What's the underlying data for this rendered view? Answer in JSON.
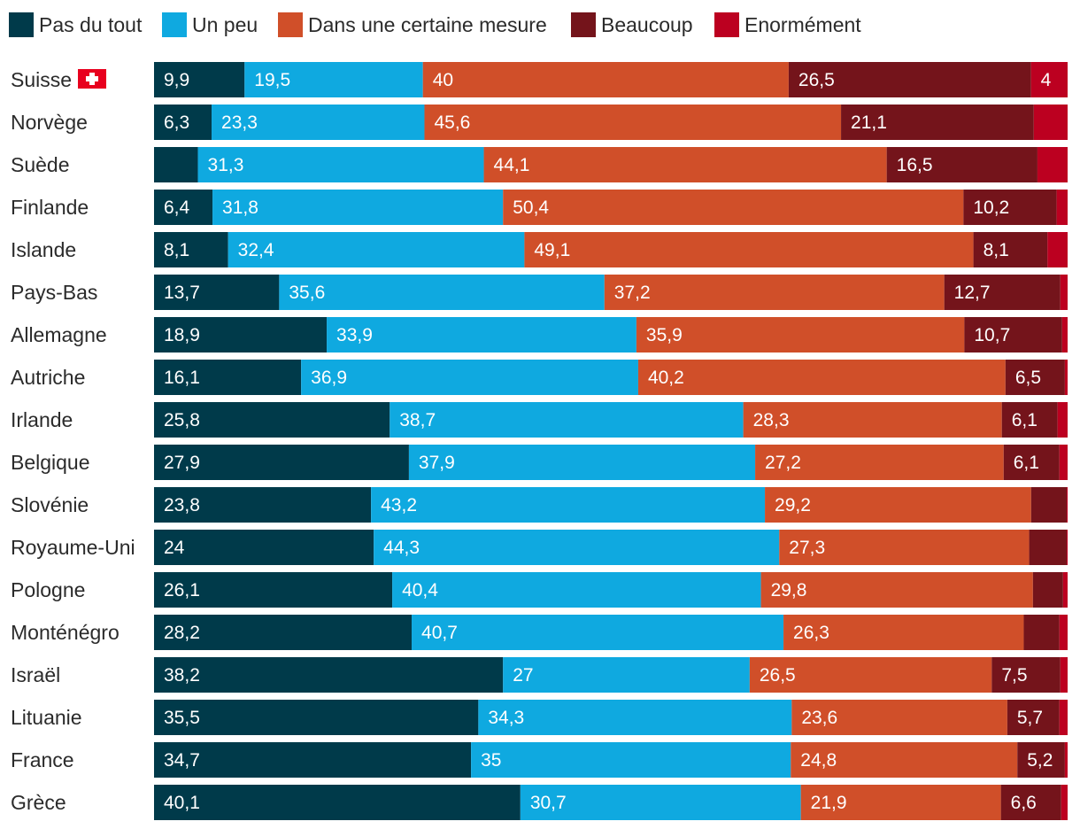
{
  "chart_data": {
    "type": "bar",
    "orientation": "horizontal",
    "stacked": true,
    "title": "",
    "xlabel": "",
    "ylabel": "",
    "xlim": [
      0,
      100
    ],
    "grid": false,
    "legend_position": "top",
    "categories": [
      "Suisse",
      "Norvège",
      "Suède",
      "Finlande",
      "Islande",
      "Pays-Bas",
      "Allemagne",
      "Autriche",
      "Irlande",
      "Belgique",
      "Slovénie",
      "Royaume-Uni",
      "Pologne",
      "Monténégro",
      "Israël",
      "Lituanie",
      "France",
      "Grèce"
    ],
    "flag_category": "Suisse",
    "series": [
      {
        "name": "Pas du tout",
        "color": "#003a4a",
        "values": [
          9.9,
          6.3,
          4.8,
          6.4,
          8.1,
          13.7,
          18.9,
          16.1,
          25.8,
          27.9,
          23.8,
          24,
          26.1,
          28.2,
          38.2,
          35.5,
          34.7,
          40.1
        ],
        "labels": [
          "9,9",
          "6,3",
          "",
          "6,4",
          "8,1",
          "13,7",
          "18,9",
          "16,1",
          "25,8",
          "27,9",
          "23,8",
          "24",
          "26,1",
          "28,2",
          "38,2",
          "35,5",
          "34,7",
          "40,1"
        ]
      },
      {
        "name": "Un peu",
        "color": "#0fa9e0",
        "values": [
          19.5,
          23.3,
          31.3,
          31.8,
          32.4,
          35.6,
          33.9,
          36.9,
          38.7,
          37.9,
          43.2,
          44.3,
          40.4,
          40.7,
          27,
          34.3,
          35,
          30.7
        ],
        "labels": [
          "19,5",
          "23,3",
          "31,3",
          "31,8",
          "32,4",
          "35,6",
          "33,9",
          "36,9",
          "38,7",
          "37,9",
          "43,2",
          "44,3",
          "40,4",
          "40,7",
          "27",
          "34,3",
          "35",
          "30,7"
        ]
      },
      {
        "name": "Dans une certaine mesure",
        "color": "#d04f29",
        "values": [
          40,
          45.6,
          44.1,
          50.4,
          49.1,
          37.2,
          35.9,
          40.2,
          28.3,
          27.2,
          29.2,
          27.3,
          29.8,
          26.3,
          26.5,
          23.6,
          24.8,
          21.9
        ],
        "labels": [
          "40",
          "45,6",
          "44,1",
          "50,4",
          "49,1",
          "37,2",
          "35,9",
          "40,2",
          "28,3",
          "27,2",
          "29,2",
          "27,3",
          "29,8",
          "26,3",
          "26,5",
          "23,6",
          "24,8",
          "21,9"
        ]
      },
      {
        "name": "Beaucoup",
        "color": "#74141b",
        "values": [
          26.5,
          21.1,
          16.5,
          10.2,
          8.1,
          12.7,
          10.7,
          6.5,
          6.1,
          6.1,
          3.9,
          4.1,
          3.3,
          3.9,
          7.5,
          5.7,
          5.2,
          6.6
        ],
        "labels": [
          "26,5",
          "21,1",
          "16,5",
          "10,2",
          "8,1",
          "12,7",
          "10,7",
          "6,5",
          "6,1",
          "6,1",
          "",
          "",
          "",
          "",
          "7,5",
          "5,7",
          "5,2",
          "6,6"
        ]
      },
      {
        "name": "Enormément",
        "color": "#bc0020",
        "values": [
          4,
          3.7,
          3.3,
          1.2,
          2.2,
          0.8,
          0.6,
          0.3,
          1.1,
          0.9,
          0.1,
          0.1,
          0.5,
          0.9,
          0.8,
          0.9,
          0.3,
          0.7
        ],
        "labels": [
          "4",
          "",
          "",
          "",
          "",
          "",
          "",
          "",
          "",
          "",
          "",
          "",
          "",
          "",
          "",
          "",
          "",
          ""
        ]
      }
    ]
  }
}
